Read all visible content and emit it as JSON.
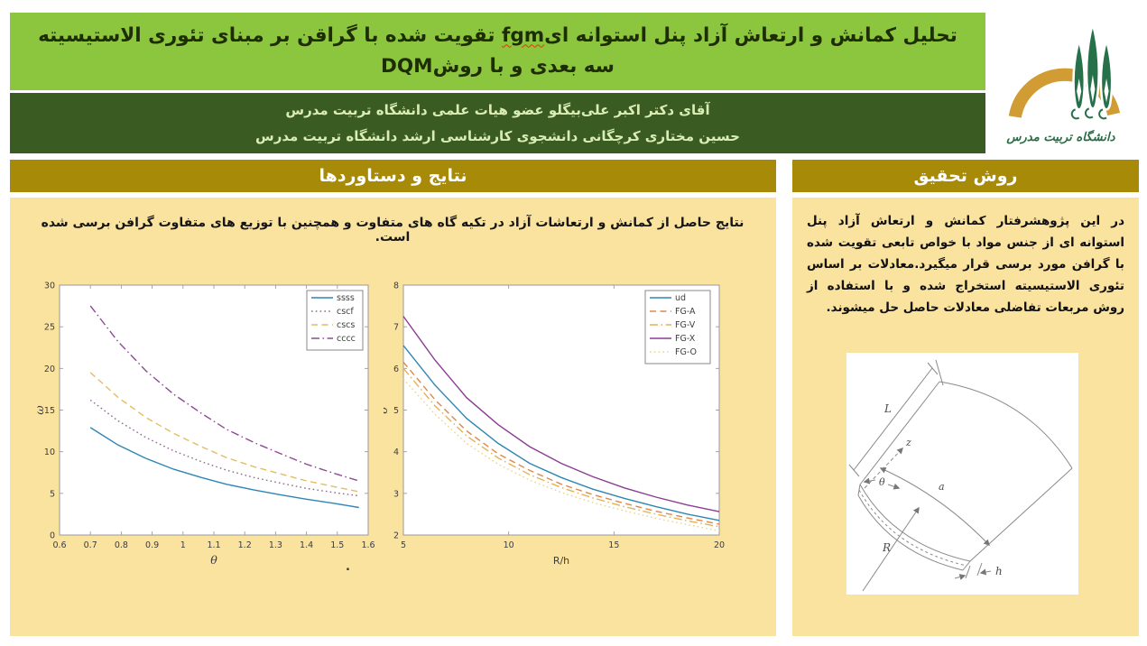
{
  "title": {
    "line1_pre": "تحلیل کمانش و ارتعاش آزاد پنل استوانه ای",
    "line1_latin": "fgm",
    "line1_post": " تقویت شده با گراقن بر مبنای تئوری الاستیسیته",
    "line2_pre": "سه بعدی و با روش",
    "line2_latin": "DQM"
  },
  "authors": {
    "line1": "آقای دکتر اکبر علی‌بیگلو عضو هیات علمی دانشگاه تربیت مدرس",
    "line2": "حسین مختاری کرچگانی دانشجوی کارشناسی ارشد دانشگاه تربیت مدرس"
  },
  "logo": {
    "caption": "دانشگاه تربیت مدرس"
  },
  "sections": {
    "results": "نتایج و دستاوردها",
    "method": "روش تحقیق"
  },
  "results": {
    "summary": "نتایج حاصل از کمانش و ارتعاشات آزاد در تکیه گاه های متفاوت و همچنین با توزیع های متفاوت گرافن برسی شده است.",
    "footnote": "."
  },
  "method": {
    "paragraph": "در این پژوهشرفتار کمانش و ارتعاش آزاد پنل استوانه ای از جنس مواد با خواص تابعی تقویت شده با گرافن مورد برسی قرار میگیرد.معادلات بر اساس تئوری الاستیسیته استخراج شده و با استفاده از روش مربعات تفاضلی معادلات حاصل حل میشوند."
  },
  "diagram": {
    "labels": {
      "L": "L",
      "z": "z",
      "theta": "θ",
      "a": "a",
      "R": "R",
      "h": "h"
    }
  },
  "colors": {
    "title_bar_green": "#8cc63e",
    "authors_bar_green": "#3a5c22",
    "header_gold": "#a78a08",
    "panel_cream": "#fae29f",
    "title_text": "#1e2d04",
    "authors_text": "#d9edb4",
    "logo_gold_arch": "#d09c33",
    "logo_green_tree": "#27714a",
    "spellcheck_red": "#e03c00"
  },
  "chart_data": [
    {
      "type": "line",
      "title": "",
      "xlabel": "θ",
      "ylabel": "ω",
      "xlim": [
        0.6,
        1.6
      ],
      "ylim": [
        0,
        30
      ],
      "xticks": [
        0.6,
        0.7,
        0.8,
        0.9,
        1,
        1.1,
        1.2,
        1.3,
        1.4,
        1.5,
        1.6
      ],
      "yticks": [
        0,
        5,
        10,
        15,
        20,
        25,
        30
      ],
      "grid": false,
      "legend_position": "top-right",
      "x": [
        0.7,
        0.79,
        0.88,
        0.97,
        1.06,
        1.14,
        1.23,
        1.32,
        1.4,
        1.49,
        1.57
      ],
      "series": [
        {
          "name": "ssss",
          "style": "solid",
          "color": "#2e86b5",
          "values": [
            12.9,
            10.8,
            9.2,
            7.9,
            6.9,
            6.1,
            5.4,
            4.8,
            4.3,
            3.8,
            3.3
          ]
        },
        {
          "name": "cscf",
          "style": "dotted",
          "color": "#8b6b8f",
          "values": [
            16.2,
            13.7,
            11.7,
            10.1,
            8.8,
            7.8,
            6.9,
            6.2,
            5.6,
            5.1,
            4.7
          ]
        },
        {
          "name": "cscs",
          "style": "dashed",
          "color": "#e2bd63",
          "values": [
            19.5,
            16.5,
            14.1,
            12.2,
            10.6,
            9.3,
            8.2,
            7.3,
            6.5,
            5.8,
            5.2
          ]
        },
        {
          "name": "cccc",
          "style": "dashdot",
          "color": "#8e4a96",
          "values": [
            27.5,
            23.2,
            19.7,
            16.9,
            14.6,
            12.7,
            11.1,
            9.7,
            8.5,
            7.4,
            6.5
          ]
        }
      ]
    },
    {
      "type": "line",
      "title": "",
      "xlabel": "R/h",
      "ylabel": "σ",
      "xlim": [
        5,
        20
      ],
      "ylim": [
        2,
        8
      ],
      "xticks": [
        5,
        10,
        15,
        20
      ],
      "yticks": [
        2,
        3,
        4,
        5,
        6,
        7,
        8
      ],
      "grid": false,
      "legend_position": "top-right",
      "x": [
        5,
        6.5,
        8,
        9.5,
        11,
        12.5,
        14,
        15.5,
        17,
        18.5,
        20
      ],
      "series": [
        {
          "name": "ud",
          "style": "solid",
          "color": "#2e86b5",
          "values": [
            6.55,
            5.6,
            4.8,
            4.2,
            3.72,
            3.38,
            3.1,
            2.88,
            2.68,
            2.5,
            2.35
          ]
        },
        {
          "name": "FG-A",
          "style": "dashed",
          "color": "#e0874a",
          "values": [
            6.15,
            5.25,
            4.5,
            3.95,
            3.55,
            3.22,
            2.97,
            2.76,
            2.57,
            2.41,
            2.26
          ]
        },
        {
          "name": "FG-V",
          "style": "dashdot",
          "color": "#e5b252",
          "values": [
            6.0,
            5.1,
            4.38,
            3.85,
            3.45,
            3.14,
            2.89,
            2.68,
            2.5,
            2.34,
            2.2
          ]
        },
        {
          "name": "FG-X",
          "style": "solid",
          "color": "#8a3d92",
          "values": [
            7.25,
            6.2,
            5.3,
            4.65,
            4.12,
            3.72,
            3.4,
            3.13,
            2.91,
            2.72,
            2.56
          ]
        },
        {
          "name": "FG-O",
          "style": "dotted",
          "color": "#e8d492",
          "values": [
            5.75,
            4.9,
            4.2,
            3.7,
            3.32,
            3.02,
            2.78,
            2.58,
            2.4,
            2.25,
            2.1
          ]
        }
      ]
    }
  ]
}
